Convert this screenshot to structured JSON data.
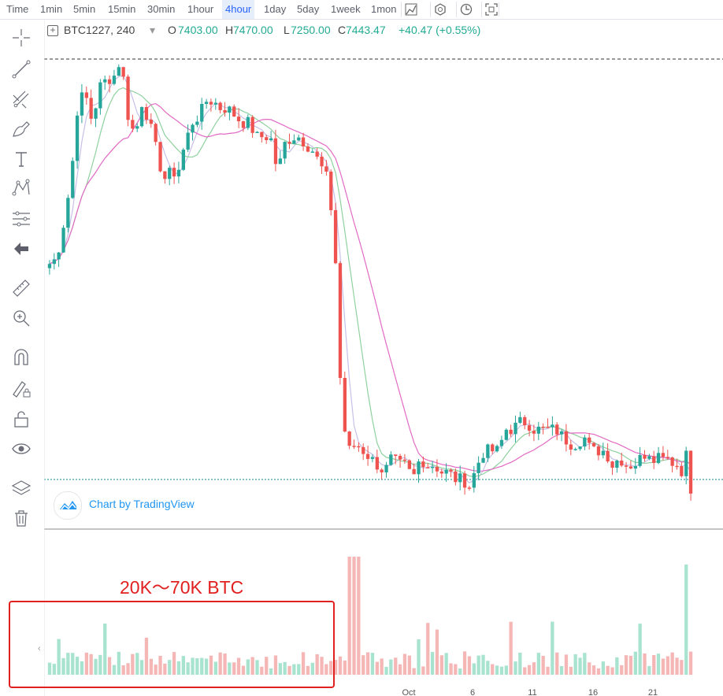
{
  "toolbar": {
    "timeframes": [
      "Time",
      "1min",
      "5min",
      "15min",
      "30min",
      "1hour",
      "4hour",
      "1day",
      "5day",
      "1week",
      "1mon"
    ],
    "active": "4hour",
    "buttons": [
      "bar-type-icon",
      "indicators-icon",
      "compare-icon",
      "fullscreen-icon"
    ]
  },
  "left_tools": [
    "crosshair-icon",
    "trend-line-icon",
    "fib-icon",
    "brush-icon",
    "text-icon",
    "pattern-icon",
    "measure-lines-icon",
    "back-arrow-icon",
    "ruler-icon",
    "zoom-in-icon",
    "magnet-icon",
    "lock-drawing-icon",
    "unlock-icon",
    "eye-icon",
    "layers-icon",
    "trash-icon"
  ],
  "legend": {
    "symbol": "BTC1227, 240",
    "dropdown": "▾",
    "o_label": "O",
    "o_value": "7403.00",
    "h_label": "H",
    "h_value": "7470.00",
    "l_label": "L",
    "l_value": "7250.00",
    "c_label": "C",
    "c_value": "7443.47",
    "change": "+40.47 (+0.55%)"
  },
  "watermark": "Chart by TradingView",
  "annotation": "20K〜70K BTC",
  "chart_data": {
    "type": "candlestick",
    "series_count": 140,
    "colors": {
      "up": "#26a69a",
      "down": "#ef5350",
      "vol_up": "#a8e3cf",
      "vol_down": "#f5b6b6",
      "ma1": "#c6c0e8",
      "ma2": "#8fd19e",
      "ma3": "#e26ac4"
    },
    "x_tick_labels": [
      "Oct",
      "6",
      "11",
      "16",
      "21"
    ],
    "approx_close": [
      7010,
      7050,
      7300,
      7600,
      8150,
      8200,
      8000,
      8250,
      8300,
      8320,
      8450,
      8050,
      7900,
      8150,
      8000,
      7800,
      7600,
      7650,
      7650,
      7850,
      8000,
      8050,
      8150,
      8150,
      8100,
      8100,
      8050,
      8000,
      8000,
      7900,
      7900,
      7900,
      7650,
      7850,
      7900,
      7900,
      7850,
      7800,
      7700,
      7600,
      7200,
      5950,
      5700,
      5750,
      5700,
      5650,
      5600,
      5550,
      5650,
      5600,
      5600,
      5500,
      5650,
      5600,
      5600,
      5550,
      5550,
      5500,
      5500,
      5450,
      5600,
      5700,
      5700,
      5700,
      5850,
      5850,
      5900,
      5900,
      5850,
      5850,
      5850,
      5850,
      5800,
      5750,
      5750,
      5800,
      5700,
      5700,
      5700,
      5600,
      5650,
      5600,
      5600,
      5650,
      5700,
      5650,
      5700,
      5650,
      5600,
      5500,
      5400
    ]
  }
}
